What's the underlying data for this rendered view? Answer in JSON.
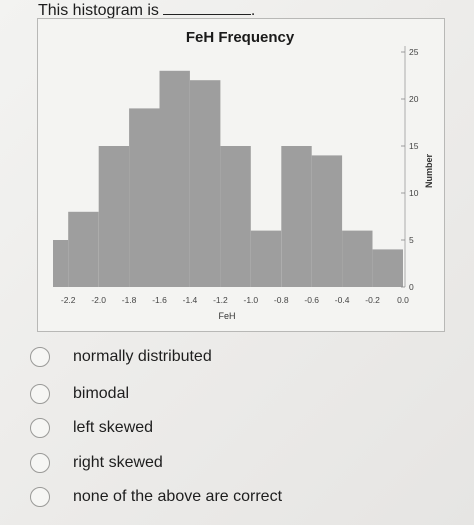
{
  "question": {
    "prefix": "This histogram is",
    "suffix": "."
  },
  "chart_data": {
    "type": "bar",
    "title": "FeH Frequency",
    "xlabel": "FeH",
    "ylabel": "Number",
    "y_axis_side": "right",
    "bin_edges": [
      -2.3,
      -2.2,
      -2.0,
      -1.8,
      -1.6,
      -1.4,
      -1.2,
      -1.0,
      -0.8,
      -0.6,
      -0.4,
      -0.2,
      0.0
    ],
    "values": [
      5,
      8,
      15,
      19,
      23,
      22,
      15,
      6,
      15,
      14,
      6,
      4
    ],
    "xlim": [
      -2.3,
      0.0
    ],
    "ylim": [
      0,
      25
    ],
    "x_ticks": [
      -2.2,
      -2.0,
      -1.8,
      -1.6,
      -1.4,
      -1.2,
      -1.0,
      -0.8,
      -0.6,
      -0.4,
      -0.2,
      0.0
    ],
    "x_tick_labels": [
      "-2.2",
      "-2.0",
      "-1.8",
      "-1.6",
      "-1.4",
      "-1.2",
      "-1.0",
      "-0.8",
      "-0.6",
      "-0.4",
      "-0.2",
      "0.0"
    ],
    "y_ticks": [
      0,
      5,
      10,
      15,
      20,
      25
    ],
    "y_tick_labels": [
      "0",
      "5",
      "10",
      "15",
      "20",
      "25"
    ],
    "bar_color": "#9e9e9e",
    "grid": false
  },
  "options": [
    {
      "label": "normally distributed"
    },
    {
      "label": "bimodal"
    },
    {
      "label": "left skewed"
    },
    {
      "label": "right skewed"
    },
    {
      "label": "none of the above are correct"
    }
  ]
}
